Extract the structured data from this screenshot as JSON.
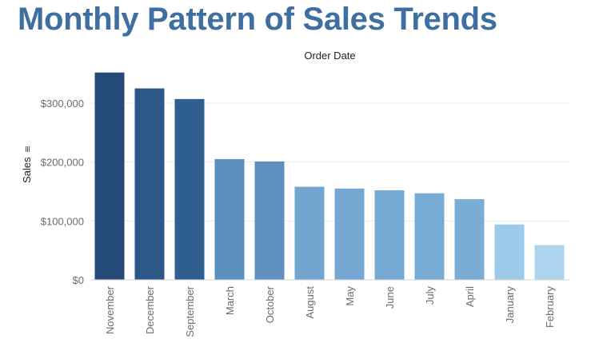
{
  "title": "Monthly Pattern of Sales Trends",
  "chart_data": {
    "type": "bar",
    "title": "Monthly Pattern of Sales Trends",
    "xlabel": "Order Date",
    "ylabel": "Sales",
    "ylabel_sort_glyph": "≡",
    "ylim": [
      0,
      360000
    ],
    "yticks": [
      {
        "value": 0,
        "label": "$0"
      },
      {
        "value": 100000,
        "label": "$100,000"
      },
      {
        "value": 200000,
        "label": "$200,000"
      },
      {
        "value": 300000,
        "label": "$300,000"
      }
    ],
    "grid": true,
    "categories": [
      "November",
      "December",
      "September",
      "March",
      "October",
      "August",
      "May",
      "June",
      "July",
      "April",
      "January",
      "February"
    ],
    "values": [
      352000,
      325000,
      307000,
      205000,
      201000,
      158000,
      155000,
      152000,
      147000,
      137000,
      94000,
      59000
    ],
    "colors": [
      "#244a77",
      "#2b5886",
      "#2f5f8f",
      "#5a8fbe",
      "#5f91bf",
      "#72a5d0",
      "#74a7d1",
      "#75a8d2",
      "#78abd3",
      "#7aadd4",
      "#9ccae9",
      "#acd4ef"
    ]
  }
}
